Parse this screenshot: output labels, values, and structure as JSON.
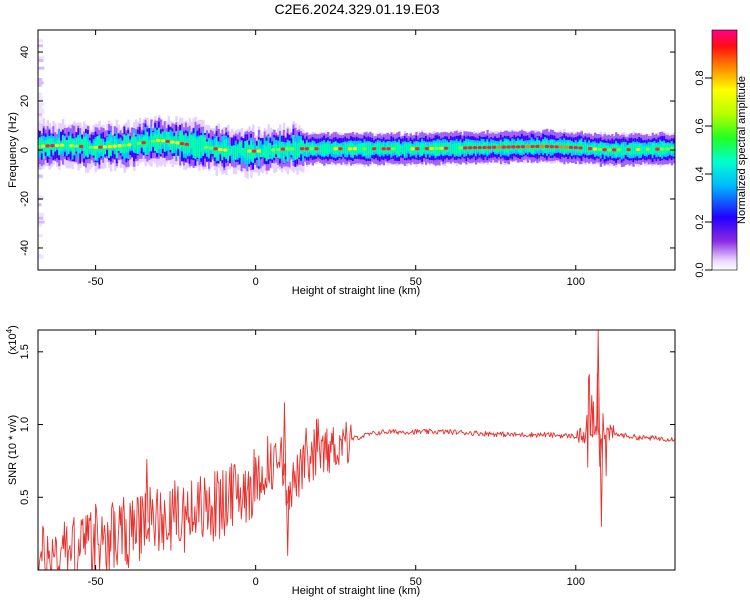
{
  "title": "C2E6.2024.329.01.19.E03",
  "chart_data": [
    {
      "type": "heatmap",
      "xlabel": "Height of straight line (km)",
      "ylabel": "Frequency (Hz)",
      "xlim": [
        -68,
        131
      ],
      "ylim": [
        -49,
        49
      ],
      "xticks": [
        -50,
        0,
        50,
        100
      ],
      "yticks": [
        -40,
        -20,
        0,
        20,
        40
      ],
      "colorbar": {
        "label": "Normalized spectral amplitude",
        "range": [
          0,
          1
        ],
        "ticks": [
          "0.0",
          "0.2",
          "0.4",
          "0.6",
          "0.8"
        ],
        "colormap": "rainbow"
      },
      "ridge": [
        [
          -68,
          1.5
        ],
        [
          -60,
          2
        ],
        [
          -50,
          1
        ],
        [
          -40,
          2
        ],
        [
          -30,
          4
        ],
        [
          -20,
          2
        ],
        [
          -10,
          0
        ],
        [
          0,
          -0.5
        ],
        [
          10,
          0.5
        ],
        [
          20,
          0.5
        ],
        [
          30,
          0.5
        ],
        [
          50,
          0.5
        ],
        [
          70,
          1
        ],
        [
          90,
          1.5
        ],
        [
          100,
          1
        ],
        [
          110,
          0
        ],
        [
          131,
          0.5
        ]
      ]
    },
    {
      "type": "line",
      "xlabel": "Height of straight line (km)",
      "ylabel": "SNR (10 * v/v)",
      "y_multiplier": "(x10",
      "y_multiplier_exp": "4",
      "y_multiplier_close": ")",
      "xlim": [
        -68,
        131
      ],
      "ylim": [
        0,
        1.65
      ],
      "xticks": [
        -50,
        0,
        50,
        100
      ],
      "yticks": [
        0.5,
        1.0,
        1.5
      ],
      "ytick_labels": [
        "0.5",
        "1.0",
        "1.5"
      ],
      "color": "#e8312d",
      "series_envelope": [
        [
          -68,
          0.05
        ],
        [
          -60,
          0.12
        ],
        [
          -50,
          0.18
        ],
        [
          -40,
          0.25
        ],
        [
          -35,
          0.32
        ],
        [
          -30,
          0.35
        ],
        [
          -20,
          0.38
        ],
        [
          -10,
          0.45
        ],
        [
          0,
          0.62
        ],
        [
          5,
          0.72
        ],
        [
          8,
          0.75
        ],
        [
          10,
          0.55
        ],
        [
          15,
          0.7
        ],
        [
          20,
          0.8
        ],
        [
          25,
          0.85
        ],
        [
          30,
          0.9
        ],
        [
          35,
          0.93
        ],
        [
          40,
          0.95
        ],
        [
          50,
          0.95
        ],
        [
          60,
          0.95
        ],
        [
          70,
          0.94
        ],
        [
          80,
          0.93
        ],
        [
          90,
          0.93
        ],
        [
          100,
          0.92
        ],
        [
          104,
          0.92
        ],
        [
          110,
          0.94
        ],
        [
          120,
          0.91
        ],
        [
          131,
          0.9
        ]
      ],
      "spikes": [
        [
          -34,
          0.76
        ],
        [
          9,
          1.15
        ],
        [
          10,
          0.1
        ],
        [
          107,
          1.65
        ],
        [
          108,
          0.3
        ],
        [
          105,
          1.2
        ]
      ]
    }
  ]
}
